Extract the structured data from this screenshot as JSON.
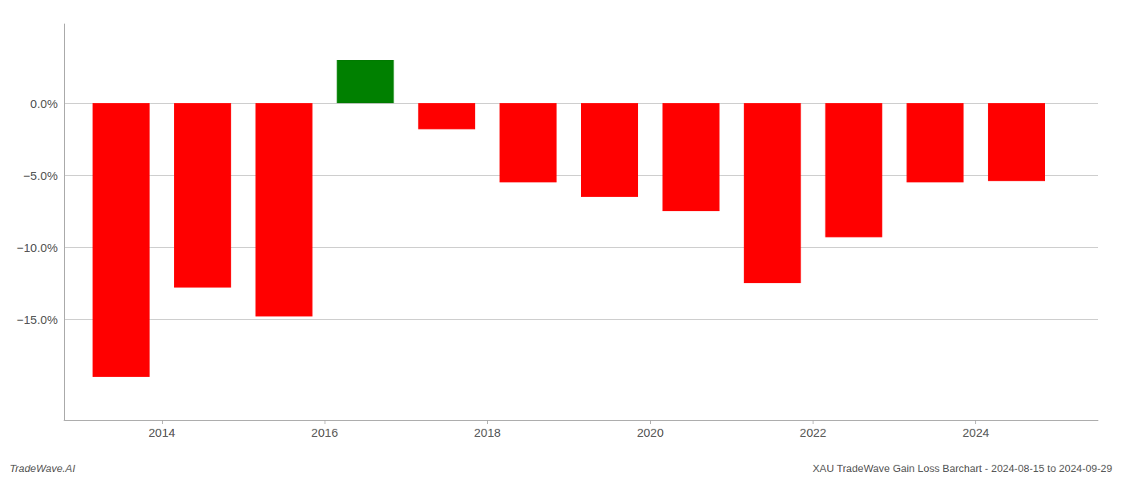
{
  "chart_data": {
    "type": "bar",
    "x": [
      2013.5,
      2014.5,
      2015.5,
      2016.5,
      2017.5,
      2018.5,
      2019.5,
      2020.5,
      2021.5,
      2022.5,
      2023.5,
      2024.5
    ],
    "values": [
      -19.0,
      -12.8,
      -14.8,
      3.0,
      -1.8,
      -5.5,
      -6.5,
      -7.5,
      -12.5,
      -9.3,
      -5.5,
      -5.4
    ],
    "colors": [
      "#ff0000",
      "#ff0000",
      "#ff0000",
      "#008000",
      "#ff0000",
      "#ff0000",
      "#ff0000",
      "#ff0000",
      "#ff0000",
      "#ff0000",
      "#ff0000",
      "#ff0000"
    ],
    "xlim": [
      2012.8,
      2025.5
    ],
    "xticks": [
      2014,
      2016,
      2018,
      2020,
      2022,
      2024
    ],
    "ylim": [
      -22,
      5.5
    ],
    "yticks": [
      {
        "value": 0.0,
        "label": "0.0%"
      },
      {
        "value": -5.0,
        "label": "−5.0%"
      },
      {
        "value": -10.0,
        "label": "−10.0%"
      },
      {
        "value": -15.0,
        "label": "−15.0%"
      }
    ],
    "grid": true,
    "annotations": [
      "TradeWave.AI",
      "XAU TradeWave Gain Loss Barchart - 2024-08-15 to 2024-09-29"
    ]
  }
}
